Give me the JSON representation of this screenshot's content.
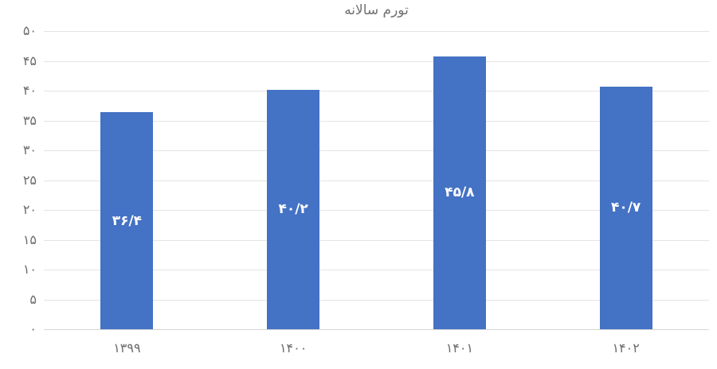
{
  "chart_data": {
    "type": "bar",
    "title": "تورم سالانه",
    "categories": [
      "۱۳۹۹",
      "۱۴۰۰",
      "۱۴۰۱",
      "۱۴۰۲"
    ],
    "values": [
      36.4,
      40.2,
      45.8,
      40.7
    ],
    "value_labels": [
      "۳۶/۴",
      "۴۰/۲",
      "۴۵/۸",
      "۴۰/۷"
    ],
    "y_ticks": [
      0,
      5,
      10,
      15,
      20,
      25,
      30,
      35,
      40,
      45,
      50
    ],
    "y_tick_labels": [
      "۰",
      "۵",
      "۱۰",
      "۱۵",
      "۲۰",
      "۲۵",
      "۳۰",
      "۳۵",
      "۴۰",
      "۴۵",
      "۵۰"
    ],
    "ylim": [
      0,
      50
    ],
    "xlabel": "",
    "ylabel": "",
    "grid": "horizontal",
    "legend": "none",
    "bar_color": "#4472C4",
    "value_label_color": "#ffffff",
    "axis_text_color": "#6d6d6d",
    "gridline_color": "#e4e4e4",
    "title_color": "#717171",
    "background_color": "#ffffff"
  }
}
